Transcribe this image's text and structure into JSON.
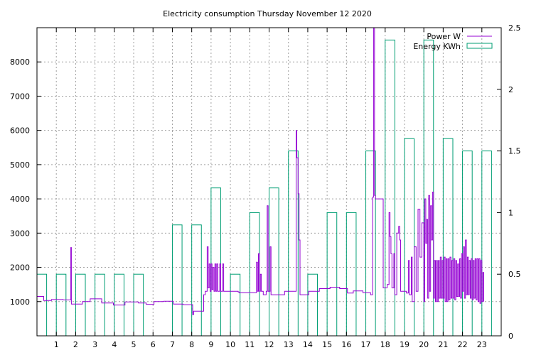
{
  "chart_data": {
    "type": "line",
    "title": "Electricity consumption Thursday November 12 2020",
    "xlabel": "",
    "ylabel": "",
    "x_ticks": [
      1,
      2,
      3,
      4,
      5,
      6,
      7,
      8,
      9,
      10,
      11,
      12,
      13,
      14,
      15,
      16,
      17,
      18,
      19,
      20,
      21,
      22,
      23
    ],
    "xlim": [
      0,
      24
    ],
    "ylim": [
      0,
      9000
    ],
    "y_ticks": [
      1000,
      2000,
      3000,
      4000,
      5000,
      6000,
      7000,
      8000
    ],
    "y2lim": [
      0,
      2.5
    ],
    "y2_ticks": [
      0,
      0.5,
      1,
      1.5,
      2,
      2.5
    ],
    "y2_tick_labels": [
      "0",
      "0.5",
      "1",
      "1.5",
      "2",
      "2.5"
    ],
    "grid": true,
    "legend_position": "top-right",
    "colors": {
      "power": "#9400d3",
      "energy": "#009e73"
    },
    "series": [
      {
        "name": "Power W",
        "axis": "left",
        "points": [
          [
            0,
            1150
          ],
          [
            0.3,
            1150
          ],
          [
            0.35,
            1030
          ],
          [
            0.7,
            1030
          ],
          [
            0.75,
            1060
          ],
          [
            1.3,
            1060
          ],
          [
            1.35,
            1050
          ],
          [
            1.7,
            1050
          ],
          [
            1.75,
            2580
          ],
          [
            1.78,
            930
          ],
          [
            2.3,
            930
          ],
          [
            2.35,
            1000
          ],
          [
            2.7,
            1000
          ],
          [
            2.75,
            1080
          ],
          [
            3.3,
            1080
          ],
          [
            3.35,
            960
          ],
          [
            3.9,
            960
          ],
          [
            3.95,
            900
          ],
          [
            4.5,
            900
          ],
          [
            4.55,
            990
          ],
          [
            5.2,
            990
          ],
          [
            5.25,
            960
          ],
          [
            5.6,
            960
          ],
          [
            5.65,
            920
          ],
          [
            6.0,
            920
          ],
          [
            6.05,
            1000
          ],
          [
            6.5,
            1000
          ],
          [
            6.55,
            1010
          ],
          [
            7.0,
            1010
          ],
          [
            7.05,
            930
          ],
          [
            7.5,
            930
          ],
          [
            7.55,
            910
          ],
          [
            8.0,
            910
          ],
          [
            8.05,
            620
          ],
          [
            8.1,
            720
          ],
          [
            8.6,
            720
          ],
          [
            8.62,
            1200
          ],
          [
            8.7,
            1300
          ],
          [
            8.8,
            2600
          ],
          [
            8.85,
            1400
          ],
          [
            8.9,
            2100
          ],
          [
            8.95,
            1300
          ],
          [
            9.0,
            2100
          ],
          [
            9.05,
            1350
          ],
          [
            9.1,
            2000
          ],
          [
            9.15,
            1300
          ],
          [
            9.2,
            2100
          ],
          [
            9.25,
            1300
          ],
          [
            9.3,
            2100
          ],
          [
            9.35,
            1300
          ],
          [
            9.45,
            2100
          ],
          [
            9.5,
            1300
          ],
          [
            9.6,
            2100
          ],
          [
            9.65,
            1300
          ],
          [
            10.4,
            1280
          ],
          [
            10.45,
            1260
          ],
          [
            11.3,
            1260
          ],
          [
            11.35,
            2150
          ],
          [
            11.4,
            1300
          ],
          [
            11.45,
            2400
          ],
          [
            11.5,
            1300
          ],
          [
            11.55,
            1800
          ],
          [
            11.6,
            1300
          ],
          [
            11.7,
            1200
          ],
          [
            11.85,
            1300
          ],
          [
            11.9,
            3800
          ],
          [
            11.95,
            1300
          ],
          [
            12.05,
            2600
          ],
          [
            12.1,
            1200
          ],
          [
            12.8,
            1300
          ],
          [
            12.85,
            1300
          ],
          [
            13.35,
            1300
          ],
          [
            13.4,
            6000
          ],
          [
            13.43,
            5200
          ],
          [
            13.5,
            4150
          ],
          [
            13.55,
            2800
          ],
          [
            13.6,
            1200
          ],
          [
            14.0,
            1200
          ],
          [
            14.05,
            1300
          ],
          [
            14.55,
            1300
          ],
          [
            14.6,
            1380
          ],
          [
            15.1,
            1380
          ],
          [
            15.15,
            1420
          ],
          [
            15.6,
            1420
          ],
          [
            15.65,
            1380
          ],
          [
            16.0,
            1380
          ],
          [
            16.05,
            1250
          ],
          [
            16.3,
            1250
          ],
          [
            16.35,
            1310
          ],
          [
            16.8,
            1310
          ],
          [
            16.85,
            1260
          ],
          [
            17.2,
            1260
          ],
          [
            17.25,
            1200
          ],
          [
            17.35,
            4050
          ],
          [
            17.4,
            9000
          ],
          [
            17.45,
            4100
          ],
          [
            17.5,
            4000
          ],
          [
            17.85,
            4000
          ],
          [
            17.9,
            1400
          ],
          [
            18.05,
            1400
          ],
          [
            18.1,
            1500
          ],
          [
            18.2,
            3600
          ],
          [
            18.25,
            2900
          ],
          [
            18.3,
            2400
          ],
          [
            18.35,
            1400
          ],
          [
            18.45,
            2400
          ],
          [
            18.5,
            1200
          ],
          [
            18.6,
            3000
          ],
          [
            18.7,
            3200
          ],
          [
            18.75,
            2800
          ],
          [
            18.8,
            1300
          ],
          [
            19.1,
            1250
          ],
          [
            19.2,
            2200
          ],
          [
            19.25,
            1200
          ],
          [
            19.35,
            2300
          ],
          [
            19.4,
            1000
          ],
          [
            19.5,
            2600
          ],
          [
            19.6,
            1300
          ],
          [
            19.7,
            3700
          ],
          [
            19.8,
            2300
          ],
          [
            19.9,
            3300
          ],
          [
            20.0,
            1000
          ],
          [
            20.05,
            4000
          ],
          [
            20.1,
            2700
          ],
          [
            20.15,
            3400
          ],
          [
            20.2,
            1100
          ],
          [
            20.25,
            4100
          ],
          [
            20.3,
            1300
          ],
          [
            20.35,
            3800
          ],
          [
            20.4,
            2800
          ],
          [
            20.45,
            4200
          ],
          [
            20.5,
            1100
          ],
          [
            20.55,
            2200
          ],
          [
            20.6,
            1000
          ],
          [
            20.65,
            2200
          ],
          [
            20.7,
            1000
          ],
          [
            20.75,
            2200
          ],
          [
            20.8,
            1100
          ],
          [
            20.85,
            2300
          ],
          [
            20.9,
            1100
          ],
          [
            20.95,
            2200
          ],
          [
            21.0,
            1100
          ],
          [
            21.05,
            2300
          ],
          [
            21.1,
            1000
          ],
          [
            21.15,
            2250
          ],
          [
            21.2,
            1000
          ],
          [
            21.25,
            2250
          ],
          [
            21.3,
            1050
          ],
          [
            21.35,
            2300
          ],
          [
            21.4,
            1100
          ],
          [
            21.45,
            2200
          ],
          [
            21.5,
            1100
          ],
          [
            21.55,
            2250
          ],
          [
            21.6,
            1050
          ],
          [
            21.65,
            2200
          ],
          [
            21.7,
            1150
          ],
          [
            21.75,
            2100
          ],
          [
            21.8,
            1150
          ],
          [
            21.85,
            2250
          ],
          [
            21.9,
            1100
          ],
          [
            21.95,
            2400
          ],
          [
            22.0,
            1300
          ],
          [
            22.05,
            2600
          ],
          [
            22.1,
            1100
          ],
          [
            22.15,
            2800
          ],
          [
            22.2,
            1200
          ],
          [
            22.25,
            2300
          ],
          [
            22.3,
            1200
          ],
          [
            22.35,
            2200
          ],
          [
            22.4,
            1100
          ],
          [
            22.45,
            2250
          ],
          [
            22.5,
            1050
          ],
          [
            22.55,
            2200
          ],
          [
            22.6,
            1100
          ],
          [
            22.65,
            2250
          ],
          [
            22.7,
            1050
          ],
          [
            22.75,
            2250
          ],
          [
            22.8,
            1000
          ],
          [
            22.85,
            2250
          ],
          [
            22.9,
            950
          ],
          [
            22.95,
            2200
          ],
          [
            23.0,
            1000
          ],
          [
            23.05,
            1850
          ],
          [
            23.1,
            1000
          ]
        ]
      },
      {
        "name": "Energy KWh",
        "axis": "right",
        "bars": [
          [
            0,
            0.5
          ],
          [
            1,
            0.5
          ],
          [
            2,
            0.5
          ],
          [
            3,
            0.5
          ],
          [
            4,
            0.5
          ],
          [
            5,
            0.5
          ],
          [
            7,
            0.9
          ],
          [
            8,
            0.9
          ],
          [
            9,
            1.2
          ],
          [
            10,
            0.5
          ],
          [
            11,
            1.0
          ],
          [
            12,
            1.2
          ],
          [
            13,
            1.5
          ],
          [
            14,
            0.5
          ],
          [
            15,
            1.0
          ],
          [
            16,
            1.0
          ],
          [
            17,
            1.5
          ],
          [
            18,
            2.4
          ],
          [
            19,
            1.6
          ],
          [
            20,
            2.4
          ],
          [
            21,
            1.6
          ],
          [
            22,
            1.5
          ],
          [
            23,
            1.5
          ]
        ]
      }
    ]
  }
}
